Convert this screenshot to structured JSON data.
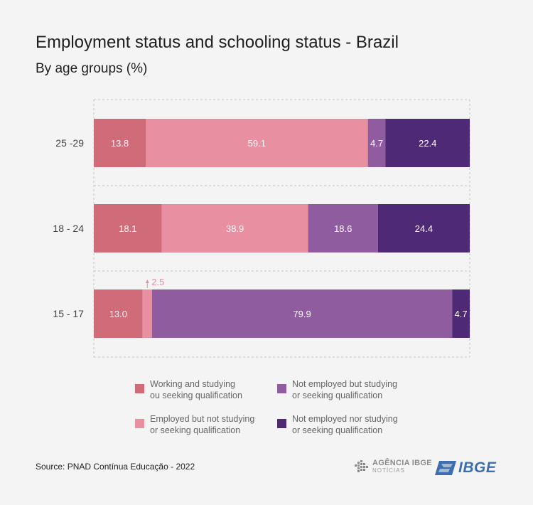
{
  "header": {
    "title": "Employment status and schooling status - Brazil",
    "subtitle": "By age groups (%)"
  },
  "chart_data": {
    "type": "bar",
    "orientation": "horizontal",
    "stacked": true,
    "title": "Employment status and schooling status - Brazil",
    "subtitle": "By age groups (%)",
    "categories": [
      "25 -29",
      "18 -  24",
      "15 -  17"
    ],
    "series": [
      {
        "name": "Working and studying ou seeking qualification",
        "color": "#d06b7a",
        "values": [
          13.8,
          18.1,
          13.0
        ]
      },
      {
        "name": "Employed but not studying or seeking qualification",
        "color": "#e88fa2",
        "values": [
          59.1,
          38.9,
          2.5
        ]
      },
      {
        "name": "Not employed but studying or seeking qualification",
        "color": "#8e5c9f",
        "values": [
          4.7,
          18.6,
          79.9
        ]
      },
      {
        "name": "Not  employed nor studying or seeking qualification",
        "color": "#4e2a76",
        "values": [
          22.4,
          24.4,
          4.7
        ]
      }
    ],
    "value_labels": [
      [
        "13.8",
        "59.1",
        "4.7",
        "22.4"
      ],
      [
        "18.1",
        "38.9",
        "18.6",
        "24.4"
      ],
      [
        "13.0",
        "2.5",
        "79.9",
        "4.7"
      ]
    ],
    "xlim": [
      0,
      100
    ],
    "grid": true,
    "legend_position": "bottom"
  },
  "legend": [
    {
      "line1": "Working and studying",
      "line2": "ou seeking qualification",
      "color": "#d06b7a"
    },
    {
      "line1": "Not employed but studying",
      "line2": "or seeking qualification",
      "color": "#8e5c9f"
    },
    {
      "line1": "Employed but not studying",
      "line2": "or seeking qualification",
      "color": "#e88fa2"
    },
    {
      "line1": "Not  employed nor studying",
      "line2": "or seeking qualification",
      "color": "#4e2a76"
    }
  ],
  "source": "Source: PNAD Contínua Educação - 2022",
  "logos": {
    "agencia_main": "AGÊNCIA IBGE",
    "agencia_sub": "NOTÍCIAS",
    "ibge": "IBGE"
  }
}
